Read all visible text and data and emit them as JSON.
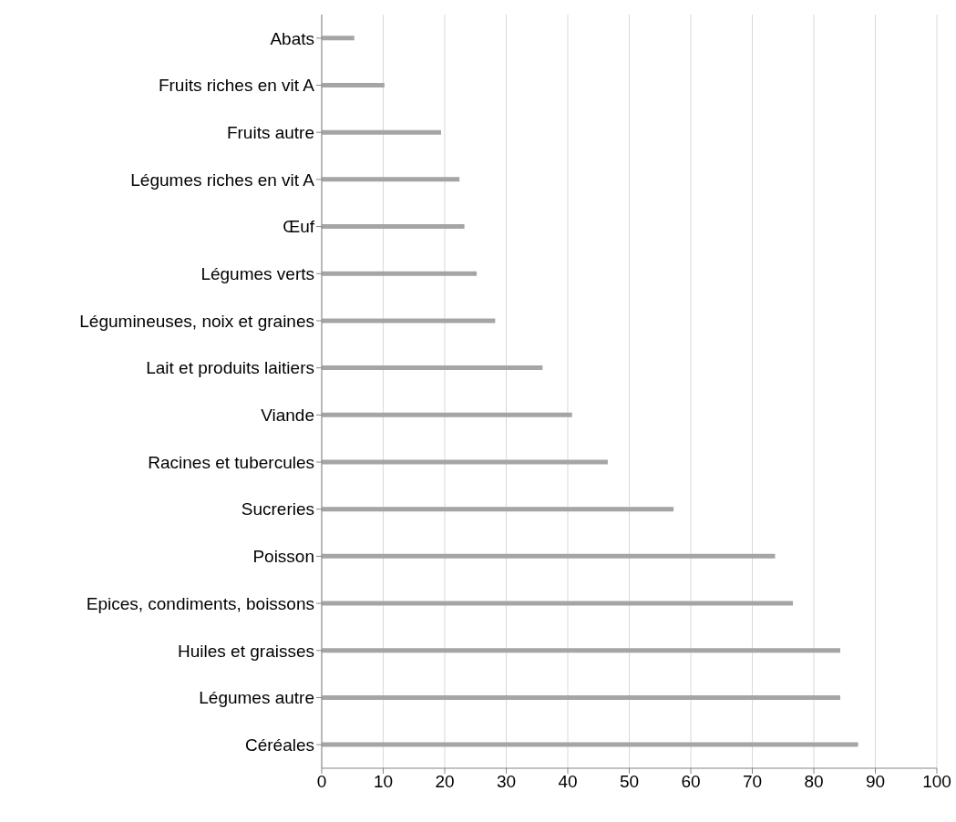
{
  "chart_data": {
    "type": "bar",
    "orientation": "horizontal",
    "categories": [
      "Abats",
      "Fruits riches en vit A",
      "Fruits autre",
      "Légumes riches en vit A",
      "Œuf",
      "Légumes verts",
      "Légumineuses, noix et graines",
      "Lait et produits laitiers",
      "Viande",
      "Racines et tubercules",
      "Sucreries",
      "Poisson",
      "Epices, condiments, boissons",
      "Huiles et graisses",
      "Légumes autre",
      "Céréales"
    ],
    "values": [
      5.3,
      10.2,
      19.4,
      22.4,
      23.2,
      25.2,
      28.2,
      35.9,
      40.7,
      46.5,
      57.2,
      73.7,
      76.6,
      84.3,
      84.3,
      87.2
    ],
    "color": "#a5a5a5",
    "xlim": [
      0,
      100
    ],
    "xticks": [
      0,
      10,
      20,
      30,
      40,
      50,
      60,
      70,
      80,
      90,
      100
    ],
    "grid": "x",
    "legend": false
  }
}
